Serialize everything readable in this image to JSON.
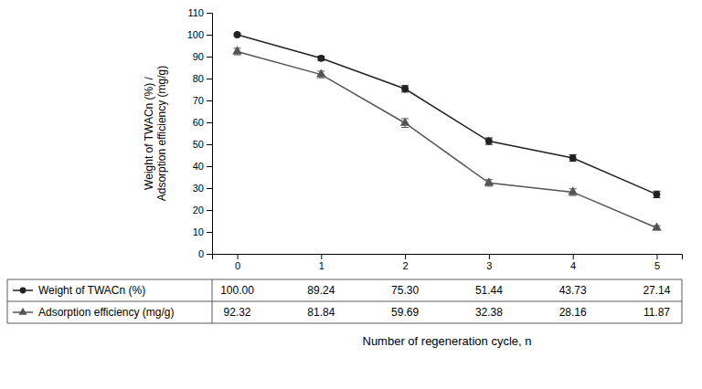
{
  "chart_data": {
    "type": "line",
    "x_label": "Number of regeneration cycle, n",
    "y_label": "Weight of TWACn (%) /\nAdsorption efficiency (mg/g)",
    "x": [
      0,
      1,
      2,
      3,
      4,
      5
    ],
    "xlim": [
      -0.3,
      5.3
    ],
    "xticks": [
      0,
      1,
      2,
      3,
      4,
      5
    ],
    "ylim": [
      0,
      110
    ],
    "yticks": [
      0,
      10,
      20,
      30,
      40,
      50,
      60,
      70,
      80,
      90,
      100,
      110
    ],
    "grid": false,
    "series": [
      {
        "name": "Weight of TWACn (%)",
        "color": "#222222",
        "marker": "circle",
        "line_style": "solid",
        "values": [
          100.0,
          89.24,
          75.3,
          51.44,
          43.73,
          27.14
        ],
        "errors": [
          0.5,
          1.0,
          1.5,
          1.5,
          1.5,
          1.5
        ],
        "value_labels": [
          "100.00",
          "89.24",
          "75.30",
          "51.44",
          "43.73",
          "27.14"
        ]
      },
      {
        "name": "Adsorption efficiency (mg/g)",
        "color": "#555555",
        "marker": "triangle",
        "line_style": "solid",
        "values": [
          92.32,
          81.84,
          59.69,
          32.38,
          28.16,
          11.87
        ],
        "errors": [
          1.5,
          1.5,
          2.0,
          1.5,
          1.5,
          1.0
        ],
        "value_labels": [
          "92.32",
          "81.84",
          "59.69",
          "32.38",
          "28.16",
          "11.87"
        ]
      }
    ]
  }
}
